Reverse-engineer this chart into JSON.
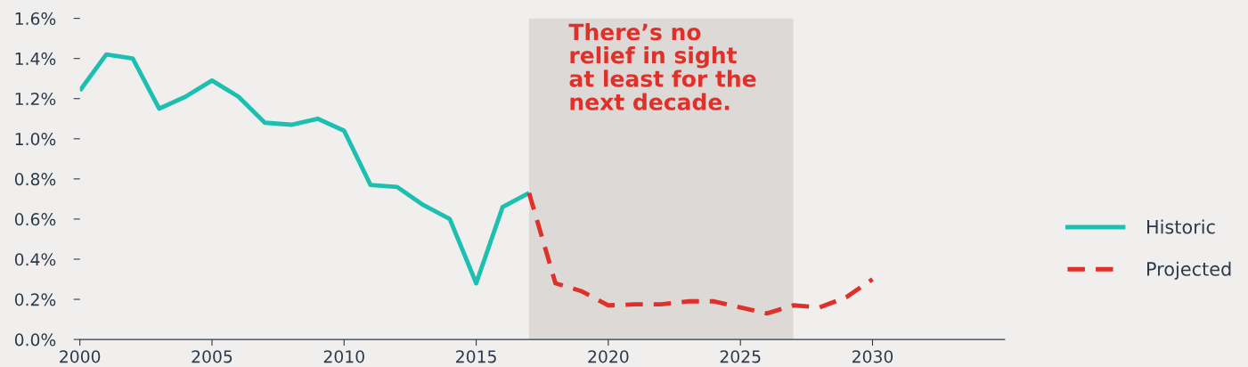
{
  "chart_data": {
    "type": "line",
    "series": [
      {
        "name": "Historic",
        "color": "#1dbfb0",
        "line_style": "solid",
        "x": [
          2000,
          2001,
          2002,
          2003,
          2004,
          2005,
          2006,
          2007,
          2008,
          2009,
          2010,
          2011,
          2012,
          2013,
          2014,
          2015,
          2016,
          2017
        ],
        "values": [
          1.24,
          1.42,
          1.4,
          1.15,
          1.21,
          1.29,
          1.21,
          1.08,
          1.07,
          1.1,
          1.04,
          0.77,
          0.76,
          0.67,
          0.6,
          0.28,
          0.66,
          0.73
        ]
      },
      {
        "name": "Projected",
        "color": "#e0302a",
        "line_style": "dashed",
        "x": [
          2017,
          2018,
          2019,
          2020,
          2021,
          2022,
          2023,
          2024,
          2025,
          2026,
          2027,
          2028,
          2029,
          2030
        ],
        "values": [
          0.73,
          0.28,
          0.24,
          0.17,
          0.175,
          0.175,
          0.19,
          0.19,
          0.16,
          0.13,
          0.17,
          0.16,
          0.21,
          0.3
        ]
      }
    ],
    "xlim": [
      2000,
      2035
    ],
    "xticks": [
      2000,
      2005,
      2010,
      2015,
      2020,
      2025,
      2030
    ],
    "ylim": [
      0,
      1.6
    ],
    "yticks": [
      {
        "value": 0,
        "label": "0.0%"
      },
      {
        "value": 0.2,
        "label": "0.2%"
      },
      {
        "value": 0.4,
        "label": "0.4%"
      },
      {
        "value": 0.6,
        "label": "0.6%"
      },
      {
        "value": 0.8,
        "label": "0.8%"
      },
      {
        "value": 1.0,
        "label": "1.0%"
      },
      {
        "value": 1.2,
        "label": "1.2%"
      },
      {
        "value": 1.4,
        "label": "1.4%"
      },
      {
        "value": 1.6,
        "label": "1.6%"
      }
    ],
    "bands": [
      {
        "axis": "x",
        "from": 2017,
        "to": 2027,
        "color": "#dcd9d7"
      }
    ],
    "annotations": [
      "There’s no\nrelief in sight\nat least for the\nnext decade."
    ],
    "grid": false,
    "legend": "right",
    "marker": "none"
  }
}
